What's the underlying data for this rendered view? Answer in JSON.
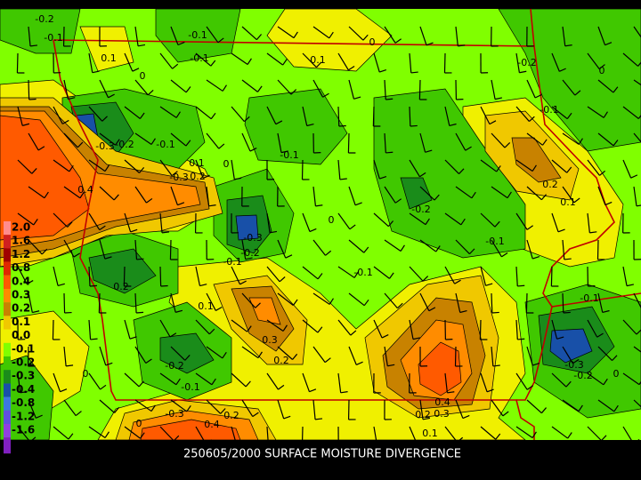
{
  "title": "250605/2000 SURFACE MOISTURE DIVERGENCE",
  "legend": [
    {
      "label": "2.0",
      "color": "#ff8c8c"
    },
    {
      "label": "1.6",
      "color": "#d02020"
    },
    {
      "label": "1.2",
      "color": "#a00000"
    },
    {
      "label": "0.8",
      "color": "#e02800"
    },
    {
      "label": "0.4",
      "color": "#ff5a00"
    },
    {
      "label": "0.3",
      "color": "#ff8c00"
    },
    {
      "label": "0.2",
      "color": "#c88200"
    },
    {
      "label": "0.1",
      "color": "#f0c800"
    },
    {
      "label": "0.0",
      "color": "#f0f000"
    },
    {
      "label": "-0.1",
      "color": "#80ff00"
    },
    {
      "label": "-0.2",
      "color": "#40c800"
    },
    {
      "label": "-0.3",
      "color": "#1a8c1a"
    },
    {
      "label": "-0.4",
      "color": "#1850a8"
    },
    {
      "label": "-0.8",
      "color": "#3c78e0"
    },
    {
      "label": "-1.2",
      "color": "#6050e0"
    },
    {
      "label": "-1.6",
      "color": "#9040e0"
    }
  ],
  "contour_labels": [
    "-0.2",
    "-0.1",
    "0.1",
    "0",
    "-0.1",
    "-0.1",
    "0.1",
    "0",
    "-0.2",
    "0",
    "-0.1",
    "-0.3",
    "-0.2",
    "-0.1",
    "0.1",
    "0",
    "-0.3",
    "0.2",
    "0.4",
    "-0.1",
    "0.2",
    "0.1",
    "-0.2",
    "0",
    "-0.3",
    "-0.2",
    "-0.1",
    "-0.1",
    "-0.1",
    "0.2",
    "0.1",
    "-0.1",
    "0.3",
    "0.2",
    "-0.2",
    "-0.1",
    "0",
    "-0.3",
    "-0.2",
    "0",
    "0.4",
    "0.3",
    "0.2",
    "0.1",
    "-0.3",
    "0.4",
    "0.2",
    "0"
  ]
}
